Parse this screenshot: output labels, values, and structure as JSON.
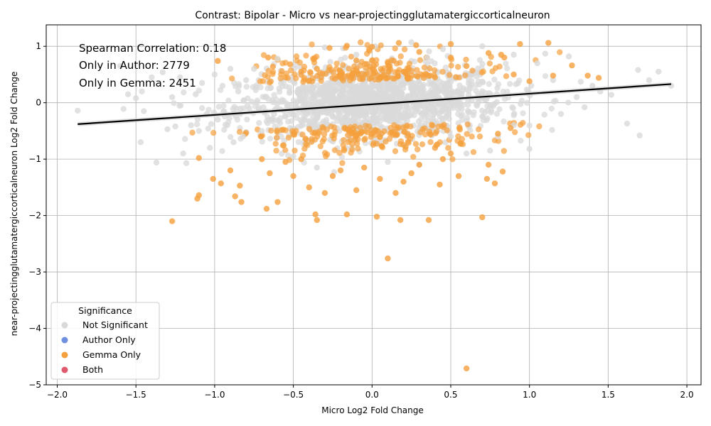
{
  "chart_data": {
    "type": "scatter",
    "title": "Contrast: Bipolar - Micro vs near-projectingglutamatergiccorticalneuron",
    "xlabel": "Micro Log2 Fold Change",
    "ylabel": "near-projectingglutamatergiccorticalneuron Log2 Fold Change",
    "xlim": [
      -2.07,
      2.09
    ],
    "ylim": [
      -5.0,
      1.38
    ],
    "x_ticks": [
      "−2.0",
      "−1.5",
      "−1.0",
      "−0.5",
      "0.0",
      "0.5",
      "1.0",
      "1.5",
      "2.0"
    ],
    "x_tick_values": [
      -2.0,
      -1.5,
      -1.0,
      -0.5,
      0.0,
      0.5,
      1.0,
      1.5,
      2.0
    ],
    "y_ticks": [
      "−5",
      "−4",
      "−3",
      "−2",
      "−1",
      "0",
      "1"
    ],
    "y_tick_values": [
      -5,
      -4,
      -3,
      -2,
      -1,
      0,
      1
    ],
    "grid": true,
    "annotations": [
      "Spearman Correlation: 0.18",
      "Only in Author: 2779",
      "Only in Gemma: 2451"
    ],
    "legend": {
      "title": "Significance",
      "placement": "lower-left",
      "entries": [
        {
          "label": "Not Significant",
          "color": "#d9d9d9"
        },
        {
          "label": "Author Only",
          "color": "#6f8fe0"
        },
        {
          "label": "Gemma Only",
          "color": "#f5a03c"
        },
        {
          "label": "Both",
          "color": "#e05a6e"
        }
      ]
    },
    "trend_line": {
      "x": [
        -1.87,
        1.9
      ],
      "y": [
        -0.38,
        0.33
      ],
      "color": "#000000"
    },
    "series": [
      {
        "name": "Not Significant",
        "color": "#d9d9d9",
        "points": [
          [
            -1.87,
            -0.14
          ],
          [
            -1.6,
            0.65
          ],
          [
            -1.55,
            0.15
          ],
          [
            -1.5,
            0.08
          ],
          [
            -1.47,
            -0.7
          ],
          [
            -1.45,
            -0.15
          ],
          [
            -1.4,
            0.45
          ],
          [
            -1.37,
            -1.06
          ],
          [
            -1.33,
            0.54
          ],
          [
            -1.3,
            -0.47
          ],
          [
            -1.27,
            0.1
          ],
          [
            -1.25,
            -0.42
          ],
          [
            -1.22,
            0.45
          ],
          [
            -1.2,
            -0.9
          ],
          [
            -1.18,
            -1.07
          ],
          [
            -1.15,
            -0.4
          ],
          [
            -1.12,
            0.15
          ],
          [
            -1.1,
            -0.5
          ],
          [
            -1.08,
            0.35
          ],
          [
            -1.05,
            -0.2
          ],
          [
            -1.03,
            -0.8
          ],
          [
            -1.0,
            0.5
          ],
          [
            -0.98,
            -0.3
          ],
          [
            -0.95,
            0.3
          ],
          [
            -0.92,
            -0.4
          ],
          [
            -0.9,
            0.6
          ],
          [
            -0.88,
            -0.7
          ],
          [
            -0.85,
            0.2
          ],
          [
            -0.82,
            -0.6
          ],
          [
            -0.8,
            0.4
          ],
          [
            -0.78,
            -0.1
          ],
          [
            -0.75,
            0.6
          ],
          [
            1.0,
            -0.82
          ],
          [
            1.05,
            0.7
          ],
          [
            1.1,
            0.87
          ],
          [
            1.15,
            0.4
          ],
          [
            1.2,
            -0.2
          ],
          [
            1.25,
            0.82
          ],
          [
            1.3,
            0.1
          ],
          [
            1.35,
            -0.08
          ],
          [
            1.4,
            0.3
          ],
          [
            1.45,
            0.2
          ],
          [
            1.52,
            0.14
          ],
          [
            1.62,
            -0.37
          ],
          [
            1.69,
            0.58
          ],
          [
            1.7,
            -0.58
          ],
          [
            1.76,
            0.4
          ],
          [
            1.82,
            0.55
          ],
          [
            1.9,
            0.3
          ],
          [
            0.25,
            1.07
          ],
          [
            0.02,
            1.0
          ],
          [
            -0.3,
            0.98
          ],
          [
            -0.6,
            0.78
          ],
          [
            0.45,
            0.95
          ],
          [
            0.7,
            1.0
          ],
          [
            0.9,
            0.85
          ],
          [
            -0.1,
            0.85
          ],
          [
            0.35,
            0.8
          ],
          [
            0.6,
            -0.9
          ],
          [
            0.75,
            -0.85
          ],
          [
            0.8,
            -0.6
          ],
          [
            0.9,
            -0.4
          ],
          [
            -0.5,
            -0.95
          ],
          [
            -0.35,
            -1.15
          ],
          [
            0.1,
            -1.05
          ],
          [
            0.3,
            -1.1
          ],
          [
            0.5,
            -0.6
          ],
          [
            -0.7,
            -0.5
          ]
        ]
      },
      {
        "name": "Gemma Only",
        "color": "#f5a03c",
        "points": [
          [
            0.6,
            -4.71
          ],
          [
            0.1,
            -2.76
          ],
          [
            -1.27,
            -2.1
          ],
          [
            -0.35,
            -2.08
          ],
          [
            -0.36,
            -1.98
          ],
          [
            -0.16,
            -1.98
          ],
          [
            0.03,
            -2.02
          ],
          [
            0.18,
            -2.08
          ],
          [
            0.36,
            -2.08
          ],
          [
            0.7,
            -2.03
          ],
          [
            -0.67,
            -1.88
          ],
          [
            -0.6,
            -1.76
          ],
          [
            -0.83,
            -1.76
          ],
          [
            -0.87,
            -1.66
          ],
          [
            -1.1,
            -1.64
          ],
          [
            -1.11,
            -1.7
          ],
          [
            -0.84,
            -1.47
          ],
          [
            -0.96,
            -1.43
          ],
          [
            -1.01,
            -1.35
          ],
          [
            -0.9,
            -1.2
          ],
          [
            -1.1,
            -0.98
          ],
          [
            -0.3,
            -1.6
          ],
          [
            -0.1,
            -1.55
          ],
          [
            0.15,
            -1.6
          ],
          [
            0.2,
            -1.4
          ],
          [
            0.43,
            -1.45
          ],
          [
            0.55,
            -1.3
          ],
          [
            0.73,
            -1.35
          ],
          [
            0.78,
            -1.43
          ],
          [
            0.74,
            -1.1
          ],
          [
            0.83,
            -1.22
          ],
          [
            0.8,
            -0.55
          ],
          [
            0.88,
            -0.45
          ],
          [
            -0.5,
            -1.3
          ],
          [
            -0.45,
            -1.0
          ],
          [
            -0.2,
            -1.2
          ],
          [
            0.05,
            -1.35
          ],
          [
            0.3,
            -1.1
          ],
          [
            0.4,
            -0.8
          ],
          [
            0.5,
            -0.9
          ],
          [
            -0.7,
            -1.0
          ],
          [
            -0.65,
            -1.25
          ],
          [
            -0.55,
            -1.05
          ],
          [
            -0.4,
            -1.5
          ],
          [
            -0.25,
            -1.3
          ],
          [
            -0.05,
            -1.15
          ],
          [
            0.25,
            -1.25
          ],
          [
            0.45,
            -1.0
          ],
          [
            -0.98,
            0.74
          ],
          [
            -0.66,
            0.8
          ],
          [
            -0.63,
            0.64
          ],
          [
            -0.52,
            0.68
          ],
          [
            -0.27,
            0.97
          ],
          [
            -0.16,
            1.01
          ],
          [
            0.0,
            0.99
          ],
          [
            0.17,
            1.06
          ],
          [
            0.28,
            1.02
          ],
          [
            0.5,
            1.04
          ],
          [
            0.94,
            1.04
          ],
          [
            1.12,
            1.06
          ],
          [
            1.27,
            0.66
          ],
          [
            1.37,
            0.48
          ],
          [
            1.44,
            0.44
          ],
          [
            0.74,
            0.88
          ],
          [
            0.82,
            0.85
          ],
          [
            0.84,
            0.8
          ],
          [
            0.5,
            0.8
          ],
          [
            0.3,
            0.9
          ],
          [
            -0.1,
            0.75
          ],
          [
            -0.35,
            0.6
          ],
          [
            -0.45,
            0.55
          ],
          [
            0.1,
            0.7
          ],
          [
            0.6,
            0.65
          ],
          [
            0.9,
            0.5
          ],
          [
            1.0,
            0.38
          ],
          [
            -0.2,
            0.5
          ],
          [
            0.2,
            0.55
          ],
          [
            0.4,
            0.45
          ],
          [
            -0.55,
            0.45
          ],
          [
            1.15,
            0.48
          ]
        ]
      },
      {
        "name": "Author Only",
        "color": "#6f8fe0",
        "points": []
      },
      {
        "name": "Both",
        "color": "#e05a6e",
        "points": []
      }
    ]
  }
}
